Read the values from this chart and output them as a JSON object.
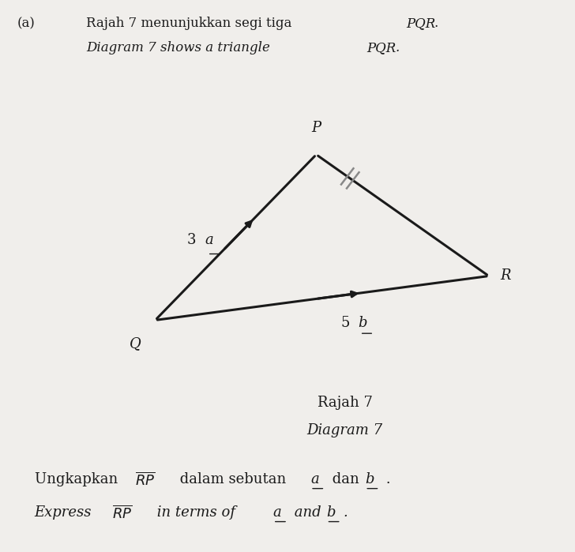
{
  "bg_color": "#f0eeeb",
  "title_line1": "(a)   Rajah 7 menunjukkan segi tiga ",
  "title_line1_italic": "PQR",
  "title_line1_end": ".",
  "title_line2": "Diagram 7 shows a triangle ",
  "title_line2_italic": "PQR",
  "title_line2_end": ".",
  "caption1": "Rajah 7",
  "caption2": "Diagram 7",
  "bottom_line1_pre": "Ungkapkan ",
  "bottom_line1_vec": "RP",
  "bottom_line1_post": " dalam sebutan ",
  "bottom_line1_a": "a",
  "bottom_line1_mid": " dan ",
  "bottom_line1_b": "b",
  "bottom_line1_end": " .",
  "bottom_line2_pre": "Express ",
  "bottom_line2_vec": "RP",
  "bottom_line2_post": " in terms of ",
  "bottom_line2_a": "a",
  "bottom_line2_mid": " and ",
  "bottom_line2_b": "b",
  "bottom_line2_end": ".",
  "P": [
    0.55,
    0.72
  ],
  "Q": [
    0.27,
    0.42
  ],
  "R": [
    0.85,
    0.5
  ],
  "label_P": "P",
  "label_Q": "Q",
  "label_R": "R",
  "label_3a": "3",
  "label_3a_italic": "a",
  "label_5b": "5",
  "label_5b_italic": "b",
  "line_color": "#1a1a1a",
  "arrow_color": "#1a1a1a",
  "tick_color": "#888888",
  "font_color": "#1a1a1a"
}
